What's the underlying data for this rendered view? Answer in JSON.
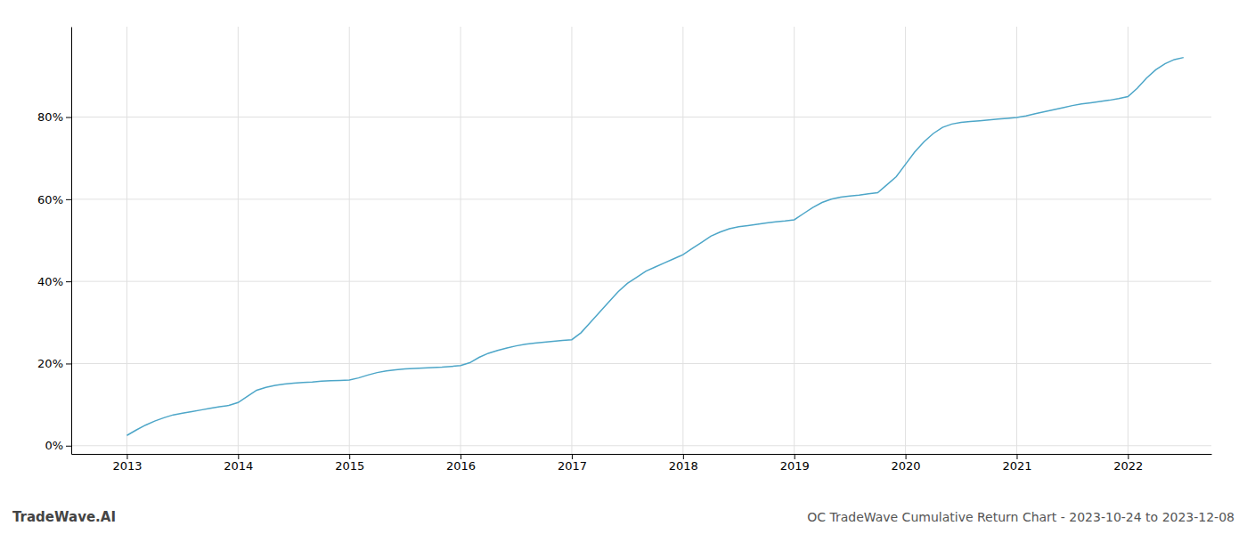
{
  "chart_data": {
    "type": "line",
    "title": "OC TradeWave Cumulative Return Chart - 2023-10-24 to 2023-12-08",
    "annotations": [
      "TradeWave.AI"
    ],
    "color": "#4da6c8",
    "grid": true,
    "xlim": [
      2012.5,
      2022.75
    ],
    "xticks": [
      2013,
      2014,
      2015,
      2016,
      2017,
      2018,
      2019,
      2020,
      2021,
      2022
    ],
    "ylim": [
      -2,
      102
    ],
    "yticks": [
      {
        "value": 0,
        "label": "0%"
      },
      {
        "value": 20,
        "label": "20%"
      },
      {
        "value": 40,
        "label": "40%"
      },
      {
        "value": 60,
        "label": "60%"
      },
      {
        "value": 80,
        "label": "80%"
      }
    ],
    "x": [
      2013.0,
      2013.083,
      2013.167,
      2013.25,
      2013.333,
      2013.417,
      2013.5,
      2013.583,
      2013.667,
      2013.75,
      2013.833,
      2013.917,
      2014.0,
      2014.083,
      2014.167,
      2014.25,
      2014.333,
      2014.417,
      2014.5,
      2014.583,
      2014.667,
      2014.75,
      2014.833,
      2014.917,
      2015.0,
      2015.083,
      2015.167,
      2015.25,
      2015.333,
      2015.417,
      2015.5,
      2015.583,
      2015.667,
      2015.75,
      2015.833,
      2015.917,
      2016.0,
      2016.083,
      2016.167,
      2016.25,
      2016.333,
      2016.417,
      2016.5,
      2016.583,
      2016.667,
      2016.75,
      2016.833,
      2016.917,
      2017.0,
      2017.083,
      2017.167,
      2017.25,
      2017.333,
      2017.417,
      2017.5,
      2017.583,
      2017.667,
      2017.75,
      2017.833,
      2017.917,
      2018.0,
      2018.083,
      2018.167,
      2018.25,
      2018.333,
      2018.417,
      2018.5,
      2018.583,
      2018.667,
      2018.75,
      2018.833,
      2018.917,
      2019.0,
      2019.083,
      2019.167,
      2019.25,
      2019.333,
      2019.417,
      2019.5,
      2019.583,
      2019.667,
      2019.75,
      2019.833,
      2019.917,
      2020.0,
      2020.083,
      2020.167,
      2020.25,
      2020.333,
      2020.417,
      2020.5,
      2020.583,
      2020.667,
      2020.75,
      2020.833,
      2020.917,
      2021.0,
      2021.083,
      2021.167,
      2021.25,
      2021.333,
      2021.417,
      2021.5,
      2021.583,
      2021.667,
      2021.75,
      2021.833,
      2021.917,
      2022.0,
      2022.083,
      2022.167,
      2022.25,
      2022.333,
      2022.417,
      2022.5
    ],
    "values": [
      2.5,
      3.8,
      5.0,
      6.0,
      6.8,
      7.5,
      7.9,
      8.3,
      8.7,
      9.1,
      9.5,
      9.8,
      10.5,
      12.0,
      13.5,
      14.2,
      14.7,
      15.0,
      15.2,
      15.4,
      15.5,
      15.7,
      15.8,
      15.9,
      16.0,
      16.5,
      17.2,
      17.8,
      18.2,
      18.5,
      18.7,
      18.8,
      18.9,
      19.0,
      19.1,
      19.3,
      19.5,
      20.2,
      21.5,
      22.5,
      23.2,
      23.8,
      24.3,
      24.7,
      25.0,
      25.2,
      25.4,
      25.6,
      25.8,
      27.5,
      30.0,
      32.5,
      35.0,
      37.5,
      39.5,
      41.0,
      42.5,
      43.5,
      44.5,
      45.5,
      46.5,
      48.0,
      49.5,
      51.0,
      52.0,
      52.8,
      53.3,
      53.6,
      53.9,
      54.2,
      54.5,
      54.7,
      55.0,
      56.5,
      58.0,
      59.2,
      60.0,
      60.5,
      60.8,
      61.0,
      61.3,
      61.6,
      63.5,
      65.5,
      68.5,
      71.5,
      74.0,
      76.0,
      77.5,
      78.3,
      78.7,
      78.9,
      79.1,
      79.3,
      79.5,
      79.7,
      79.9,
      80.3,
      80.8,
      81.3,
      81.8,
      82.3,
      82.8,
      83.2,
      83.5,
      83.8,
      84.1,
      84.5,
      85.0,
      87.0,
      89.5,
      91.5,
      93.0,
      94.0,
      94.5
    ]
  }
}
